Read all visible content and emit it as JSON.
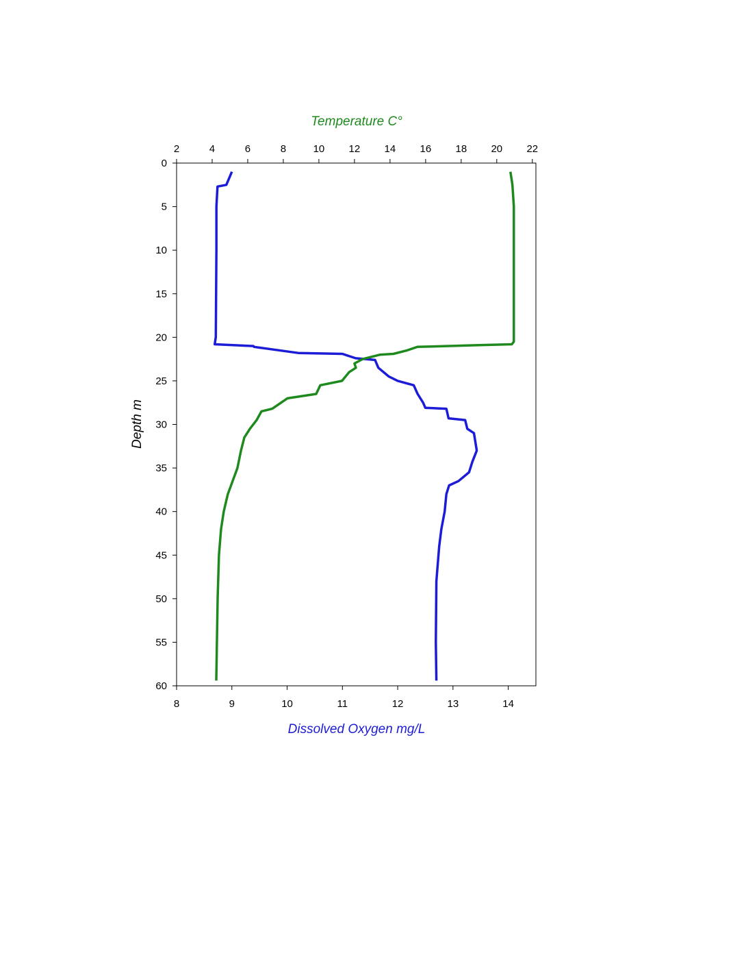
{
  "chart_data": {
    "type": "line",
    "x2label": "Temperature C°",
    "xlabel": "Dissolved Oxygen mg/L",
    "ylabel": "Depth m",
    "ylim": [
      0,
      60
    ],
    "y_inverted": true,
    "yticks": [
      0,
      5,
      10,
      15,
      20,
      25,
      30,
      35,
      40,
      45,
      50,
      55,
      60
    ],
    "xlim": [
      8,
      14.5
    ],
    "xticks": [
      8,
      9,
      10,
      11,
      12,
      13,
      14
    ],
    "x2lim": [
      2,
      22.2
    ],
    "x2ticks": [
      2,
      4,
      6,
      8,
      10,
      12,
      14,
      16,
      18,
      20,
      22
    ],
    "series": [
      {
        "axis": "x",
        "color": "#1c1cd6",
        "depth": [
          1,
          2.5,
          2.7,
          5,
          10,
          20,
          20.8,
          21,
          21.1,
          21.8,
          21.9,
          22.4,
          22.6,
          23.5,
          24.5,
          25,
          25.5,
          26.5,
          27.5,
          28.1,
          28.2,
          29.3,
          29.5,
          30.5,
          31,
          33,
          34.3,
          35.5,
          36.5,
          37,
          38,
          40,
          42,
          44,
          48,
          55,
          59.4
        ],
        "values": [
          9.0,
          8.9,
          8.74,
          8.72,
          8.72,
          8.71,
          8.69,
          9.39,
          9.4,
          10.2,
          11.0,
          11.24,
          11.59,
          11.65,
          11.84,
          12.0,
          12.29,
          12.36,
          12.46,
          12.5,
          12.88,
          12.92,
          13.22,
          13.26,
          13.38,
          13.43,
          13.35,
          13.29,
          13.1,
          12.93,
          12.88,
          12.85,
          12.79,
          12.75,
          12.7,
          12.69,
          12.7
        ]
      },
      {
        "axis": "x2",
        "color": "#1e8a1e",
        "depth": [
          1,
          2.5,
          5,
          10,
          20.5,
          20.8,
          20.9,
          21.1,
          21.5,
          21.9,
          22,
          22.5,
          23,
          23.5,
          24,
          25,
          25.5,
          26.5,
          27,
          28.2,
          28.5,
          29.5,
          30.5,
          31.5,
          33,
          35,
          36.5,
          38,
          40,
          42,
          45,
          50,
          59.4
        ],
        "values": [
          20.77,
          20.88,
          20.96,
          20.96,
          20.96,
          20.85,
          19.0,
          15.54,
          14.96,
          14.19,
          13.42,
          12.46,
          12.0,
          12.08,
          11.7,
          11.3,
          10.08,
          9.85,
          8.23,
          7.38,
          6.77,
          6.5,
          6.12,
          5.81,
          5.62,
          5.42,
          5.15,
          4.88,
          4.65,
          4.5,
          4.38,
          4.31,
          4.23
        ]
      }
    ]
  }
}
